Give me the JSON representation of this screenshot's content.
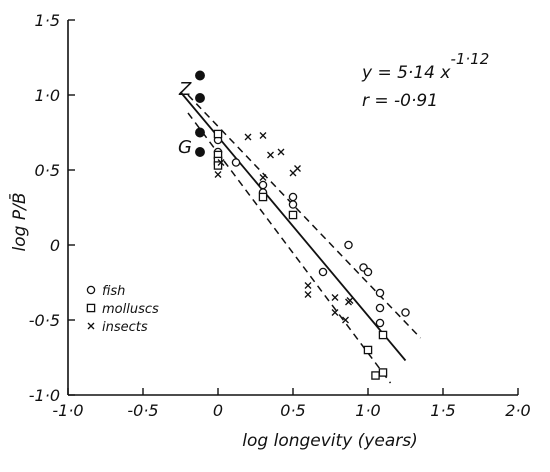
{
  "chart_data": {
    "type": "scatter",
    "xlabel": "log longevity (years)",
    "ylabel": "log P/B̄",
    "xlim": [
      -1.0,
      2.0
    ],
    "ylim": [
      -1.0,
      1.5
    ],
    "x_ticks": [
      {
        "v": -1.0,
        "label": "-1·0"
      },
      {
        "v": -0.5,
        "label": "-0·5"
      },
      {
        "v": 0,
        "label": "0"
      },
      {
        "v": 0.5,
        "label": "0·5"
      },
      {
        "v": 1.0,
        "label": "1·0"
      },
      {
        "v": 1.5,
        "label": "1·5"
      },
      {
        "v": 2.0,
        "label": "2·0"
      }
    ],
    "y_ticks": [
      {
        "v": 1.5,
        "label": "1·5"
      },
      {
        "v": 1.0,
        "label": "1·0"
      },
      {
        "v": 0.5,
        "label": "0·5"
      },
      {
        "v": 0,
        "label": "0"
      },
      {
        "v": -0.5,
        "label": "-0·5"
      },
      {
        "v": -1.0,
        "label": "-1·0"
      }
    ],
    "grid": false,
    "legend_position": "bottom-left",
    "annotations": {
      "equation_base": "y = 5·14 x",
      "equation_exp": "-1·12",
      "r_text": "r = -0·91",
      "label_z": "Z",
      "label_g": "G"
    },
    "regression": {
      "solid": [
        [
          -0.25,
          1.02
        ],
        [
          1.25,
          -0.77
        ]
      ],
      "upper": [
        [
          -0.2,
          1.0
        ],
        [
          1.35,
          -0.62
        ]
      ],
      "lower": [
        [
          -0.2,
          0.88
        ],
        [
          1.15,
          -0.92
        ]
      ]
    },
    "series": [
      {
        "name": "fish",
        "marker": "circle-open",
        "points": [
          [
            0.0,
            0.7
          ],
          [
            0.0,
            0.62
          ],
          [
            0.0,
            0.58
          ],
          [
            0.12,
            0.55
          ],
          [
            0.3,
            0.4
          ],
          [
            0.3,
            0.35
          ],
          [
            0.5,
            0.32
          ],
          [
            0.5,
            0.27
          ],
          [
            0.7,
            -0.18
          ],
          [
            0.87,
            0.0
          ],
          [
            0.97,
            -0.15
          ],
          [
            1.0,
            -0.18
          ],
          [
            1.08,
            -0.32
          ],
          [
            1.08,
            -0.42
          ],
          [
            1.08,
            -0.52
          ],
          [
            1.25,
            -0.45
          ]
        ]
      },
      {
        "name": "molluscs",
        "marker": "square-open",
        "points": [
          [
            0.0,
            0.74
          ],
          [
            0.0,
            0.6
          ],
          [
            0.0,
            0.56
          ],
          [
            0.0,
            0.53
          ],
          [
            0.3,
            0.32
          ],
          [
            0.5,
            0.2
          ],
          [
            1.0,
            -0.7
          ],
          [
            1.1,
            -0.6
          ],
          [
            1.05,
            -0.87
          ],
          [
            1.1,
            -0.85
          ]
        ]
      },
      {
        "name": "insects",
        "marker": "cross",
        "points": [
          [
            0.0,
            0.47
          ],
          [
            0.02,
            0.55
          ],
          [
            0.2,
            0.72
          ],
          [
            0.3,
            0.73
          ],
          [
            0.35,
            0.6
          ],
          [
            0.42,
            0.62
          ],
          [
            0.3,
            0.45
          ],
          [
            0.5,
            0.48
          ],
          [
            0.53,
            0.51
          ],
          [
            0.6,
            -0.27
          ],
          [
            0.6,
            -0.33
          ],
          [
            0.78,
            -0.35
          ],
          [
            0.78,
            -0.45
          ],
          [
            0.85,
            -0.5
          ],
          [
            0.87,
            -0.38
          ],
          [
            0.88,
            -0.37
          ]
        ]
      },
      {
        "name": "",
        "marker": "circle-filled",
        "points": [
          [
            -0.12,
            1.13
          ],
          [
            -0.12,
            0.98
          ],
          [
            -0.12,
            0.75
          ],
          [
            -0.12,
            0.62
          ]
        ]
      }
    ]
  }
}
